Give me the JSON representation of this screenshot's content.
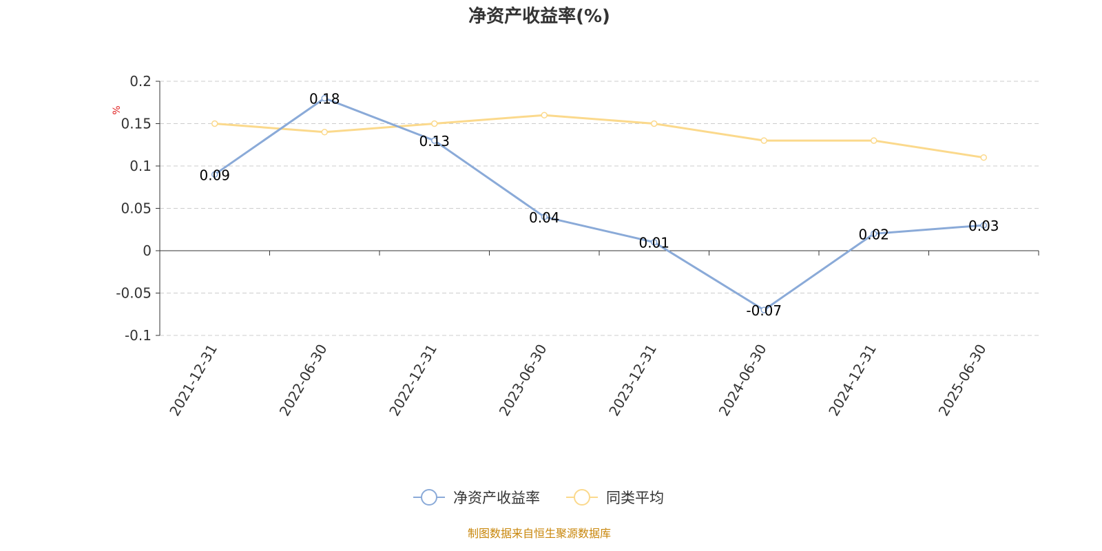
{
  "chart_data": {
    "type": "line",
    "title": "净资产收益率(%)",
    "ylabel": "%",
    "categories": [
      "2021-12-31",
      "2022-06-30",
      "2022-12-31",
      "2023-06-30",
      "2023-12-31",
      "2024-06-30",
      "2024-12-31",
      "2025-06-30"
    ],
    "y_ticks": [
      "0.2",
      "0.15",
      "0.1",
      "0.05",
      "0",
      "-0.05",
      "-0.1"
    ],
    "ylim": [
      -0.1,
      0.2
    ],
    "grid": true,
    "legend_position": "bottom",
    "series": [
      {
        "name": "净资产收益率",
        "color": "#8aaad8",
        "values": [
          0.09,
          0.18,
          0.13,
          0.04,
          0.01,
          -0.07,
          0.02,
          0.03
        ],
        "labels": [
          "0.09",
          "0.18",
          "0.13",
          "0.04",
          "0.01",
          "-0.07",
          "0.02",
          "0.03"
        ]
      },
      {
        "name": "同类平均",
        "color": "#fbd98c",
        "values": [
          0.15,
          0.14,
          0.15,
          0.16,
          0.15,
          0.13,
          0.13,
          0.11
        ]
      }
    ]
  },
  "source": "制图数据来自恒生聚源数据库"
}
